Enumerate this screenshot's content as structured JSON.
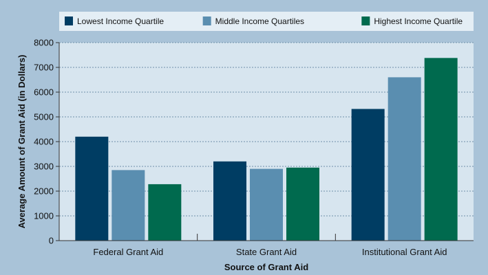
{
  "chart_data": {
    "type": "bar",
    "title": "",
    "xlabel": "Source of Grant Aid",
    "ylabel": "Average Amount of Grant Aid (in Dollars)",
    "ylim": [
      0,
      8000
    ],
    "yticks": [
      0,
      1000,
      2000,
      3000,
      4000,
      5000,
      6000,
      7000,
      8000
    ],
    "grid": true,
    "legend_position": "top",
    "categories": [
      "Federal Grant Aid",
      "State Grant Aid",
      "Institutional Grant Aid"
    ],
    "series": [
      {
        "name": "Lowest Income Quartile",
        "color": "#003d63",
        "values": [
          4200,
          3200,
          5320
        ]
      },
      {
        "name": "Middle Income Quartiles",
        "color": "#5a8eb0",
        "values": [
          2850,
          2900,
          6600
        ]
      },
      {
        "name": "Highest Income Quartile",
        "color": "#006a4e",
        "values": [
          2280,
          2950,
          7380
        ]
      }
    ]
  },
  "colors": {
    "background": "#a9c3d8",
    "plot_area": "#d7e5ef",
    "legend_box": "#e4eef5",
    "grid": "#6f8fa8"
  }
}
